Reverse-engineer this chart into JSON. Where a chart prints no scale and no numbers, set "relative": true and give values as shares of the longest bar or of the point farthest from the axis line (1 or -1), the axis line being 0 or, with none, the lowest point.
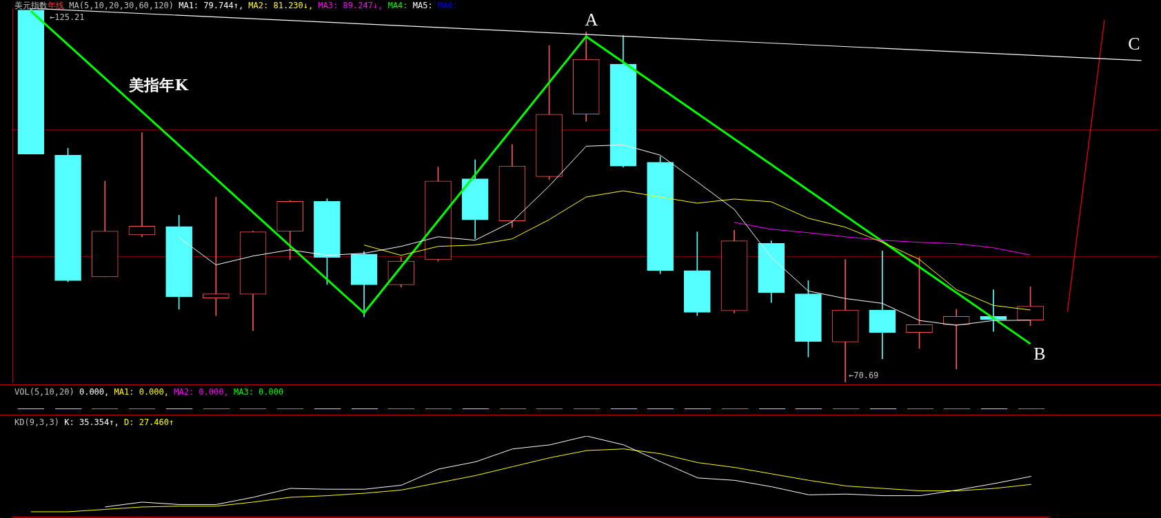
{
  "chart_data": [
    {
      "type": "candlestick",
      "title": "美元指数",
      "subtitle": "年线",
      "legend_title": "MA(5,10,20,30,60,120)",
      "legend": "top left",
      "tick_labels": false,
      "grid": "y",
      "categories": [
        null,
        null,
        null,
        null,
        null,
        null,
        null,
        null,
        null,
        null,
        null,
        null,
        null,
        null,
        null,
        null,
        null,
        null,
        null,
        null,
        null,
        null,
        null,
        null,
        null,
        null,
        null,
        null,
        null,
        null,
        null
      ],
      "ohlc": [
        [
          124.95,
          125.21,
          103.96,
          103.96
        ],
        [
          103.8,
          104.79,
          85.34,
          85.5
        ],
        [
          86.05,
          100.02,
          86.05,
          92.73
        ],
        [
          92.19,
          107.09,
          91.91,
          93.45
        ],
        [
          93.39,
          95.04,
          81.34,
          83.14
        ],
        [
          82.98,
          97.67,
          80.41,
          83.58
        ],
        [
          83.53,
          92.72,
          78.21,
          92.62
        ],
        [
          92.68,
          97.17,
          88.57,
          97.06
        ],
        [
          97.06,
          97.45,
          84.95,
          88.9
        ],
        [
          89.39,
          89.77,
          80.24,
          84.9
        ],
        [
          84.9,
          88.9,
          84.57,
          88.35
        ],
        [
          88.57,
          102.05,
          88.35,
          100.02
        ],
        [
          100.35,
          103.15,
          91.64,
          94.38
        ],
        [
          94.21,
          105.34,
          93.28,
          102.21
        ],
        [
          100.68,
          119.75,
          100.24,
          109.77
        ],
        [
          109.77,
          121.77,
          108.73,
          117.77
        ],
        [
          117.06,
          121.23,
          102.05,
          102.21
        ],
        [
          102.76,
          103.58,
          86.54,
          86.98
        ],
        [
          86.98,
          92.62,
          80.41,
          80.9
        ],
        [
          81.12,
          92.84,
          80.79,
          91.31
        ],
        [
          90.93,
          91.31,
          82.32,
          83.75
        ],
        [
          83.58,
          85.5,
          74.38,
          76.62
        ],
        [
          76.57,
          88.57,
          70.69,
          81.23
        ],
        [
          81.23,
          89.83,
          74.1,
          77.94
        ],
        [
          77.94,
          88.9,
          75.64,
          79.09
        ],
        [
          79.09,
          81.34,
          72.62,
          80.3
        ],
        [
          80.3,
          84.19,
          78.1,
          79.8
        ],
        [
          79.75,
          84.62,
          78.93,
          81.77
        ],
        null,
        null,
        null
      ],
      "colors": [
        "#54ffff",
        "#54ffff",
        "#ff5454",
        "#ff5454",
        "#54ffff",
        "#ff5454",
        "#ff5454",
        "#ff5454",
        "#54ffff",
        "#54ffff",
        "#ff5454",
        "#ff5454",
        "#54ffff",
        "#ff5454",
        "#ff5454",
        "#ff5454",
        "#54ffff",
        "#54ffff",
        "#54ffff",
        "#ff5454",
        "#54ffff",
        "#54ffff",
        "#ff5454",
        "#54ffff",
        "#ff5454",
        "#ff5454",
        "#54ffff",
        "#ff5454",
        null,
        null,
        null
      ],
      "yticks": [
        {
          "value": 107.5,
          "label": null
        },
        {
          "value": 89.0,
          "label": null
        }
      ],
      "series": [
        {
          "name": "MA1: 79.744↑,",
          "type": "line",
          "color": "#ffffff",
          "values": [
            null,
            null,
            null,
            null,
            91.8,
            87.8,
            89.1,
            90.0,
            89.2,
            89.5,
            90.5,
            91.9,
            91.4,
            94.1,
            99.3,
            105.1,
            105.3,
            103.8,
            99.9,
            95.9,
            88.9,
            84.0,
            82.9,
            82.2,
            79.7,
            79.0,
            79.7,
            79.744,
            null,
            null,
            null
          ]
        },
        {
          "name": "MA2: 81.230↓,",
          "type": "line",
          "color": "#ffff00",
          "values": [
            null,
            null,
            null,
            null,
            null,
            null,
            null,
            null,
            null,
            90.7,
            89.2,
            90.5,
            90.7,
            91.6,
            94.4,
            97.7,
            98.6,
            97.7,
            96.8,
            97.4,
            97.0,
            94.6,
            93.3,
            91.1,
            88.6,
            84.2,
            81.9,
            81.23,
            null,
            null,
            null
          ]
        },
        {
          "name": "MA3: 89.247↓,",
          "type": "line",
          "color": "#ff00ff",
          "values": [
            null,
            null,
            null,
            null,
            null,
            null,
            null,
            null,
            null,
            null,
            null,
            null,
            null,
            null,
            null,
            null,
            null,
            null,
            null,
            94.0,
            93.0,
            92.5,
            91.9,
            91.4,
            91.1,
            90.9,
            90.3,
            89.247,
            null,
            null,
            null
          ]
        },
        {
          "name": "MA4:",
          "type": "line",
          "color": "#00ff00",
          "values": [
            null,
            null,
            null,
            null,
            null,
            null,
            null,
            null,
            null,
            null,
            null,
            null,
            null,
            null,
            null,
            null,
            null,
            null,
            null,
            null,
            null,
            null,
            null,
            null,
            null,
            null,
            null,
            null,
            null,
            null,
            null
          ]
        },
        {
          "name": "MA5:",
          "type": "line",
          "color": "#ffffff",
          "values": [
            null,
            null,
            null,
            null,
            null,
            null,
            null,
            null,
            null,
            null,
            null,
            null,
            null,
            null,
            null,
            null,
            null,
            null,
            null,
            null,
            null,
            null,
            null,
            null,
            null,
            null,
            null,
            null,
            null,
            null,
            null
          ]
        },
        {
          "name": "MA6:",
          "type": "line",
          "color": "#0000ff",
          "values": [
            null,
            null,
            null,
            null,
            null,
            null,
            null,
            null,
            null,
            null,
            null,
            null,
            null,
            null,
            null,
            null,
            null,
            null,
            null,
            null,
            null,
            null,
            null,
            null,
            null,
            null,
            null,
            null,
            null,
            null,
            null
          ]
        },
        {
          "type": "line",
          "color": "#ffffff",
          "values": [
            125.2,
            null,
            null,
            null,
            null,
            null,
            null,
            null,
            null,
            null,
            null,
            null,
            null,
            null,
            null,
            null,
            null,
            null,
            null,
            null,
            null,
            null,
            null,
            null,
            null,
            null,
            null,
            null,
            null,
            null,
            117.6
          ]
        },
        {
          "type": "line",
          "color": "#00ff00",
          "values": [
            124.8,
            null,
            null,
            null,
            null,
            null,
            null,
            null,
            null,
            80.8,
            null,
            null,
            null,
            null,
            null,
            121.1,
            null,
            null,
            null,
            null,
            null,
            null,
            null,
            null,
            null,
            null,
            null,
            76.3,
            null,
            null,
            null
          ]
        },
        {
          "type": "line",
          "color": "#ff0000",
          "values": [
            null,
            null,
            null,
            null,
            null,
            null,
            null,
            null,
            null,
            null,
            null,
            null,
            null,
            null,
            null,
            null,
            null,
            null,
            null,
            null,
            null,
            null,
            null,
            null,
            null,
            null,
            null,
            null,
            81.0,
            123.5,
            null
          ]
        }
      ],
      "annotations": [
        "美指年K",
        "A",
        "B",
        "C",
        "←125.21",
        "←70.69"
      ]
    },
    {
      "type": "other",
      "title": "VOL(5,10,20)",
      "annotations": [
        "0.000,",
        "MA1: 0.000,",
        "MA2: 0.000,",
        "MA3: 0.000"
      ]
    },
    {
      "type": "line",
      "title": "KD(9,3,3)",
      "relative": true,
      "legend": "top left",
      "tick_labels": false,
      "categories": [
        null,
        null,
        null,
        null,
        null,
        null,
        null,
        null,
        null,
        null,
        null,
        null,
        null,
        null,
        null,
        null,
        null,
        null,
        null,
        null,
        null,
        null,
        null,
        null,
        null,
        null,
        null,
        null
      ],
      "series": [
        {
          "name": "K: 35.354↑,",
          "color": "#ffffff",
          "values": [
            null,
            null,
            0.12,
            0.18,
            0.15,
            0.15,
            0.24,
            0.35,
            0.34,
            0.34,
            0.39,
            0.59,
            0.68,
            0.84,
            0.89,
            1,
            0.89,
            0.68,
            0.48,
            0.45,
            0.37,
            0.27,
            0.28,
            0.26,
            0.26,
            0.33,
            0.41,
            0.5
          ]
        },
        {
          "name": "D: 27.460↑",
          "color": "#ffff00",
          "values": [
            0.06,
            0.06,
            0.09,
            0.12,
            0.13,
            0.13,
            0.18,
            0.24,
            0.26,
            0.29,
            0.33,
            0.42,
            0.51,
            0.62,
            0.73,
            0.82,
            0.84,
            0.78,
            0.67,
            0.61,
            0.53,
            0.45,
            0.38,
            0.35,
            0.32,
            0.32,
            0.35,
            0.4
          ]
        }
      ]
    }
  ]
}
